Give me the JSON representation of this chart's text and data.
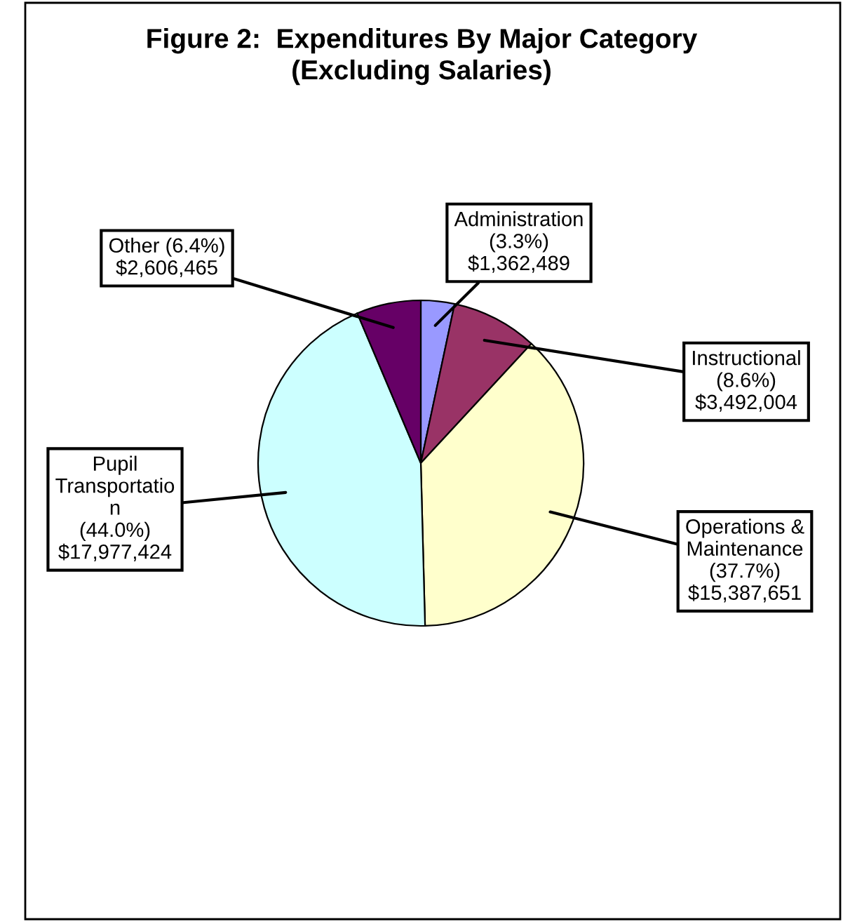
{
  "chart_data": {
    "type": "pie",
    "title": "Figure 2:  Expenditures By Major Category\n(Excluding Salaries)",
    "categories": [
      "Administration",
      "Instructional",
      "Operations &\nMaintenance",
      "Pupil\nTransportatio\nn",
      "Other"
    ],
    "values": [
      1362489,
      3492004,
      15387651,
      17977424,
      2606465
    ],
    "value_labels": [
      "(3.3%)\n$1,362,489",
      "(8.6%)\n$3,492,004",
      "(37.7%)\n$15,387,651",
      "(44.0%)\n$17,977,424",
      "(6.4%)\n$2,606,465"
    ],
    "colors": [
      "#9999ff",
      "#993366",
      "#ffffcc",
      "#ccffff",
      "#660066"
    ]
  }
}
